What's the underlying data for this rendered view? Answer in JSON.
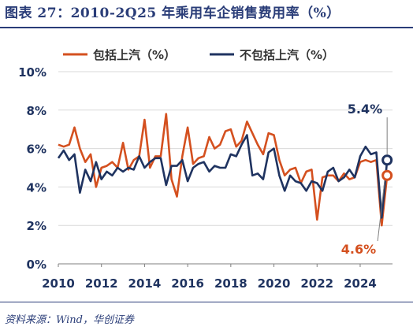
{
  "title": "图表 27：2010-2Q25 年乘用车企销售费用率（%）",
  "source": "资料来源：Wind，华创证券",
  "colors": {
    "series_1": "#d4501f",
    "series_2": "#1f3360",
    "title": "#2a3d78",
    "grid": "#d9d9d9",
    "axis_text": "#1f3360"
  },
  "chart_data": {
    "type": "line",
    "title": "",
    "xlabel": "",
    "ylabel": "",
    "grid": true,
    "legend_position": "top",
    "x_range": [
      2010,
      2025.5
    ],
    "ylim": [
      0,
      10
    ],
    "y_ticks": [
      "0%",
      "2%",
      "4%",
      "6%",
      "8%",
      "10%"
    ],
    "y_tick_values": [
      0,
      2,
      4,
      6,
      8,
      10
    ],
    "x_ticks": [
      "2010",
      "2012",
      "2014",
      "2016",
      "2018",
      "2020",
      "2022",
      "2024"
    ],
    "x_tick_values": [
      2010,
      2012,
      2014,
      2016,
      2018,
      2020,
      2022,
      2024
    ],
    "x": [
      2010.0,
      2010.25,
      2010.5,
      2010.75,
      2011.0,
      2011.25,
      2011.5,
      2011.75,
      2012.0,
      2012.25,
      2012.5,
      2012.75,
      2013.0,
      2013.25,
      2013.5,
      2013.75,
      2014.0,
      2014.25,
      2014.5,
      2014.75,
      2015.0,
      2015.25,
      2015.5,
      2015.75,
      2016.0,
      2016.25,
      2016.5,
      2016.75,
      2017.0,
      2017.25,
      2017.5,
      2017.75,
      2018.0,
      2018.25,
      2018.5,
      2018.75,
      2019.0,
      2019.25,
      2019.5,
      2019.75,
      2020.0,
      2020.25,
      2020.5,
      2020.75,
      2021.0,
      2021.25,
      2021.5,
      2021.75,
      2022.0,
      2022.25,
      2022.5,
      2022.75,
      2023.0,
      2023.25,
      2023.5,
      2023.75,
      2024.0,
      2024.25,
      2024.5,
      2024.75,
      2025.0,
      2025.25
    ],
    "series": [
      {
        "name": "包括上汽（%）",
        "values": [
          6.2,
          6.1,
          6.2,
          7.1,
          6.0,
          5.3,
          5.7,
          4.0,
          5.0,
          5.1,
          5.3,
          5.0,
          6.3,
          4.9,
          5.4,
          5.6,
          7.5,
          5.0,
          5.6,
          5.6,
          7.8,
          4.4,
          3.5,
          5.6,
          7.1,
          5.2,
          5.5,
          5.6,
          6.6,
          6.0,
          6.2,
          6.9,
          7.0,
          6.1,
          6.4,
          7.4,
          6.8,
          6.2,
          5.7,
          6.8,
          6.7,
          5.4,
          4.6,
          4.9,
          5.0,
          4.2,
          4.8,
          4.9,
          2.3,
          4.5,
          4.6,
          4.6,
          4.3,
          4.7,
          4.4,
          4.5,
          5.3,
          5.4,
          5.3,
          5.4,
          2.0,
          4.6
        ],
        "end_label": "4.6%"
      },
      {
        "name": "不包括上汽（%）",
        "values": [
          5.5,
          5.9,
          5.4,
          5.7,
          3.7,
          4.9,
          4.3,
          5.3,
          4.4,
          4.8,
          4.6,
          5.0,
          4.8,
          5.0,
          4.9,
          5.6,
          5.0,
          5.3,
          5.5,
          5.5,
          4.1,
          5.1,
          5.1,
          5.4,
          4.3,
          5.0,
          5.2,
          5.3,
          4.8,
          5.1,
          5.0,
          5.0,
          5.7,
          5.6,
          6.2,
          6.7,
          4.6,
          4.7,
          4.4,
          5.8,
          6.0,
          4.6,
          3.8,
          4.6,
          4.3,
          4.2,
          3.8,
          4.3,
          4.2,
          3.8,
          4.8,
          5.0,
          4.3,
          4.5,
          4.9,
          4.5,
          5.6,
          6.1,
          5.7,
          5.8,
          2.4,
          5.4
        ],
        "end_label": "5.4%"
      }
    ]
  }
}
